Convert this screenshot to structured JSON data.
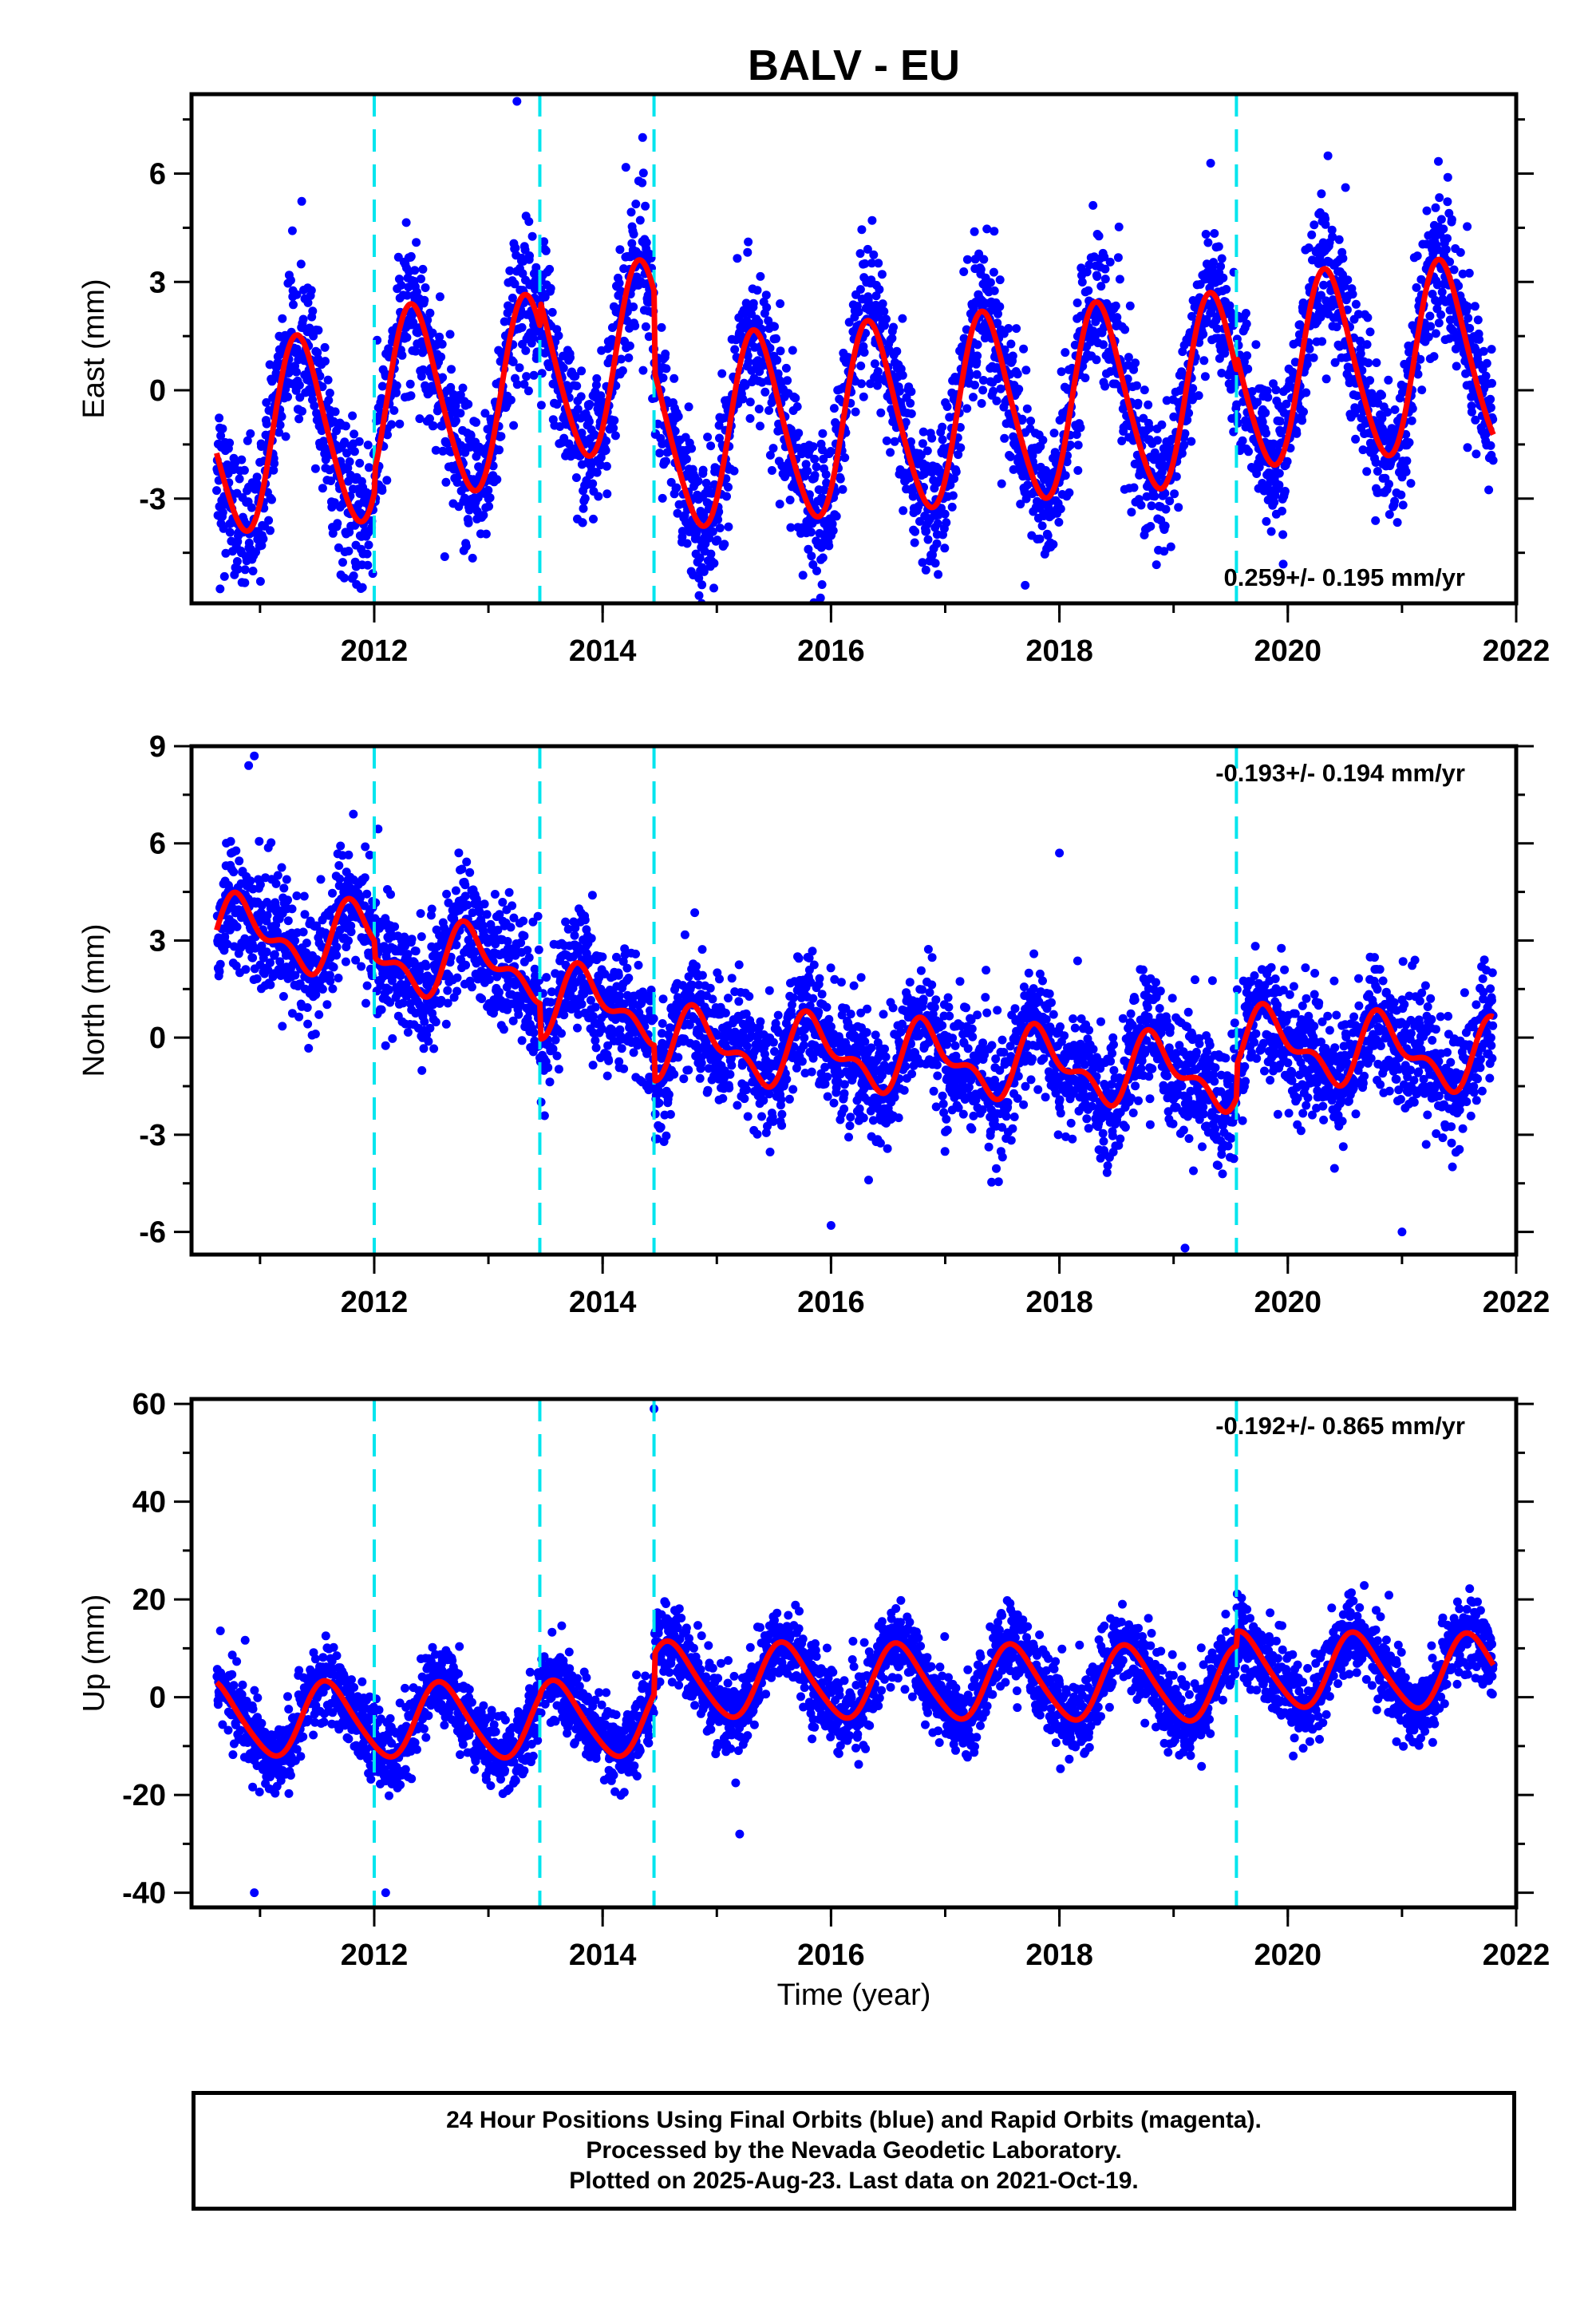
{
  "chart_data": {
    "type": "scatter",
    "title": "BALV - EU",
    "xlabel": "Time (year)",
    "xlim": [
      2010.4,
      2022
    ],
    "x_ticks": [
      2012,
      2014,
      2016,
      2018,
      2020,
      2022
    ],
    "x_start": 2010.62,
    "x_end": 2021.8,
    "offset_epochs": [
      2012.0,
      2013.45,
      2014.45,
      2019.55
    ],
    "colors": {
      "final_orbits": "#0000ff",
      "model": "#ff0000",
      "offsets": "#00e5ee"
    },
    "panels": [
      {
        "name": "East",
        "ylabel": "East (mm)",
        "ylim": [
          -5.9,
          8.2
        ],
        "y_ticks": [
          -3,
          0,
          3,
          6
        ],
        "rate_label": "0.259+/- 0.195 mm/yr",
        "rate_position": "bottom-right",
        "trend": 0.259,
        "annual_amp": 2.6,
        "annual_peak": 0.35,
        "semiannual_amp": 0.3,
        "noise": 1.0,
        "segment_offsets": [
          0.0,
          0.6,
          1.3,
          -0.9,
          -0.5
        ],
        "outliers": [
          [
            2013.25,
            8.0
          ],
          [
            2010.65,
            -5.5
          ],
          [
            2017.7,
            -5.4
          ],
          [
            2014.35,
            7.0
          ]
        ]
      },
      {
        "name": "North",
        "ylabel": "North (mm)",
        "ylim": [
          -6.7,
          9.0
        ],
        "y_ticks": [
          -6,
          -3,
          0,
          3,
          6,
          9
        ],
        "rate_label": "-0.193+/- 0.194 mm/yr",
        "rate_position": "top-right",
        "trend": -0.193,
        "annual_amp": 0.9,
        "annual_peak": 0.85,
        "semiannual_amp": 0.5,
        "noise": 0.95,
        "segment_offsets": [
          2.2,
          1.7,
          0.6,
          -0.5,
          0.5
        ],
        "outliers": [
          [
            2010.95,
            8.7
          ],
          [
            2010.9,
            8.4
          ],
          [
            2018.0,
            5.7
          ],
          [
            2019.1,
            -6.5
          ],
          [
            2021.0,
            -6.0
          ],
          [
            2016.0,
            -5.8
          ]
        ]
      },
      {
        "name": "Up",
        "ylabel": "Up (mm)",
        "ylim": [
          -43,
          61
        ],
        "y_ticks": [
          -40,
          -20,
          0,
          20,
          40,
          60
        ],
        "rate_label": "-0.192+/- 0.865 mm/yr",
        "rate_position": "top-right",
        "trend": -0.192,
        "annual_amp": 7.5,
        "annual_peak": 0.6,
        "semiannual_amp": 1.0,
        "noise": 4.0,
        "segment_offsets": [
          -5.5,
          -5.5,
          -5.0,
          3.2,
          6.2
        ],
        "outliers": [
          [
            2014.45,
            59
          ],
          [
            2010.95,
            -40
          ],
          [
            2012.1,
            -40
          ],
          [
            2015.2,
            -28
          ]
        ]
      }
    ]
  },
  "footer": {
    "line1": "24 Hour Positions Using Final Orbits (blue) and Rapid Orbits (magenta).",
    "line2": "Processed by the Nevada Geodetic Laboratory.",
    "line3": "Plotted on 2025-Aug-23. Last data on 2021-Oct-19."
  }
}
